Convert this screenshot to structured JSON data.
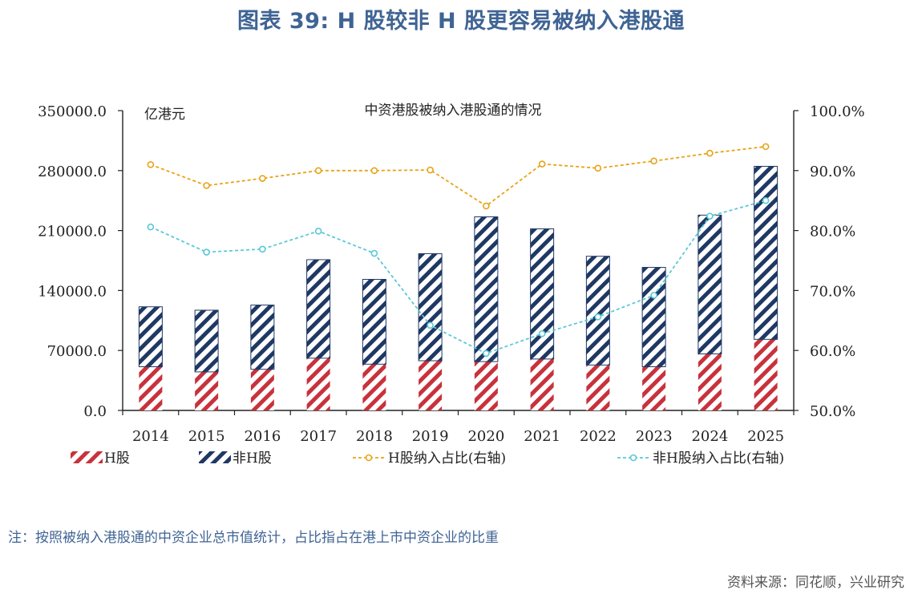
{
  "title": "图表 39: H 股较非 H 股更容易被纳入港股通",
  "note": "注：按照被纳入港股通的中资企业总市值统计，占比指占在港上市中资企业的比重",
  "source": "资料来源：同花顺，兴业研究",
  "colors": {
    "title": "#3f6494",
    "h_share": "#c8323c",
    "non_h_share": "#1f3864",
    "h_ratio_line": "#e8a317",
    "non_h_ratio_line": "#5bc8d8"
  },
  "chart_data": {
    "type": "bar",
    "stacked": true,
    "title": "中资港股被纳入港股通的情况",
    "unit_label": "亿港元",
    "categories": [
      "2014",
      "2015",
      "2016",
      "2017",
      "2018",
      "2019",
      "2020",
      "2021",
      "2022",
      "2023",
      "2024",
      "2025"
    ],
    "left_axis": {
      "ylim": [
        0,
        350000
      ],
      "ticks": [
        "0.0",
        "70000.0",
        "140000.0",
        "210000.0",
        "280000.0",
        "350000.0"
      ]
    },
    "right_axis": {
      "ylim": [
        50,
        100
      ],
      "ticks": [
        "50.0%",
        "60.0%",
        "70.0%",
        "80.0%",
        "90.0%",
        "100.0%"
      ]
    },
    "series": [
      {
        "name": "H股",
        "kind": "bar",
        "axis": "left",
        "pattern": "hatch",
        "values": [
          51000,
          45000,
          48000,
          61000,
          54000,
          58000,
          57000,
          60000,
          53000,
          51000,
          66000,
          83000
        ]
      },
      {
        "name": "非H股",
        "kind": "bar",
        "axis": "left",
        "pattern": "hatch",
        "values": [
          70000,
          72000,
          75000,
          115000,
          99000,
          125000,
          169000,
          152000,
          127000,
          116000,
          162000,
          202000
        ]
      },
      {
        "name": "H股纳入占比(右轴)",
        "kind": "line",
        "axis": "right",
        "values": [
          91.0,
          87.5,
          88.7,
          90.0,
          90.0,
          90.1,
          84.1,
          91.1,
          90.4,
          91.6,
          92.9,
          94.0
        ]
      },
      {
        "name": "非H股纳入占比(右轴)",
        "kind": "line",
        "axis": "right",
        "values": [
          80.6,
          76.4,
          76.9,
          79.9,
          76.2,
          64.2,
          59.5,
          62.8,
          65.6,
          69.2,
          82.4,
          85.0
        ]
      }
    ],
    "grid": false,
    "legend_position": "bottom"
  }
}
